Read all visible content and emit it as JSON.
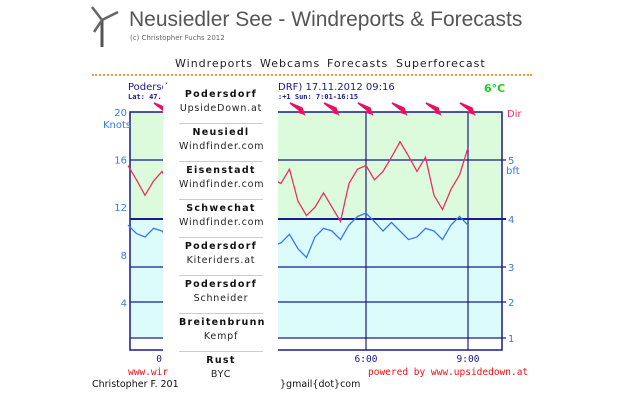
{
  "header": {
    "title": "Neusiedler See - Windreports & Forecasts",
    "subtitle": "(c) Christopher Fuchs 2012",
    "logo": "wind-turbine-icon"
  },
  "nav": [
    "Windreports",
    "Webcams",
    "Forecasts",
    "Superforecast"
  ],
  "station": {
    "name_visible": "Podersd",
    "lat_visible": "Lat: 47.",
    "title_visible": "DRF) 17.11.2012 09:16",
    "sun_visible": ":+1 Sun: 7:01-16:15",
    "temperature": "6°C"
  },
  "menu": [
    {
      "place": "Podersdorf",
      "source": "UpsideDown.at"
    },
    {
      "place": "Neusiedl",
      "source": "Windfinder.com"
    },
    {
      "place": "Eisenstadt",
      "source": "Windfinder.com"
    },
    {
      "place": "Schwechat",
      "source": "Windfinder.com"
    },
    {
      "place": "Podersdorf",
      "source": "Kiteriders.at"
    },
    {
      "place": "Podersdorf",
      "source": "Schneider"
    },
    {
      "place": "Breitenbrunn",
      "source": "Kempf"
    },
    {
      "place": "Rust",
      "source": "BYC"
    }
  ],
  "footer": {
    "left_link": "www.wir",
    "powered": "powered by www.upsidedown.at",
    "credit": "Christopher F. 201",
    "email": "}gmail{dot}com"
  },
  "chart_data": {
    "type": "line",
    "ylabel_left": "Knots",
    "ylabel_right": "bft",
    "dir_label": "Dir",
    "yticks_left": [
      "20",
      "16",
      "12",
      "8",
      "4"
    ],
    "yticks_right": [
      "5",
      "4",
      "3",
      "2",
      "1"
    ],
    "xticks": [
      "0:",
      "6:00",
      "9:00"
    ],
    "ylim": [
      0,
      20
    ],
    "x": [
      "23:00",
      "23:30",
      "0:00",
      "0:30",
      "1:00",
      "1:30",
      "2:00",
      "2:30",
      "3:00",
      "3:30",
      "4:00",
      "4:30",
      "5:00",
      "5:30",
      "6:00",
      "6:30",
      "7:00",
      "7:30",
      "8:00",
      "8:30",
      "9:00"
    ],
    "series": [
      {
        "color": "#e8306a",
        "values": [
          15.5,
          13,
          15,
          17,
          15,
          14.5,
          15,
          17,
          15.5,
          14,
          12.5,
          12,
          12,
          14,
          15.5,
          15,
          17.5,
          15,
          13,
          13.5,
          17
        ]
      },
      {
        "color": "#3a78e8",
        "values": [
          10.5,
          9.5,
          10,
          11.5,
          10.5,
          9.5,
          10,
          10.5,
          9.5,
          9,
          8.5,
          9.5,
          10,
          10.5,
          11.5,
          10,
          10,
          9.5,
          10,
          10.5,
          10.5
        ]
      }
    ],
    "wind_direction": "NW",
    "colors": {
      "gust": "#e8306a",
      "mean": "#3a78e8",
      "upper_band": "#dcfadc",
      "lower_band": "#dcfcfc",
      "grid": "#1a1a8a"
    }
  }
}
